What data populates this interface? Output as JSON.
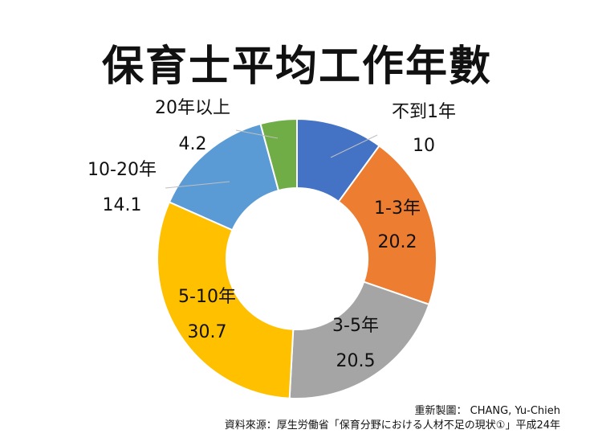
{
  "chart_data": {
    "type": "pie",
    "variant": "donut",
    "title": "保育士平均工作年數",
    "categories": [
      "不到1年",
      "1-3年",
      "3-5年",
      "5-10年",
      "10-20年",
      "20年以上"
    ],
    "values": [
      10,
      20.2,
      20.5,
      30.7,
      14.1,
      4.2
    ],
    "value_labels": [
      "10",
      "20.2",
      "20.5",
      "30.7",
      "14.1",
      "4.2"
    ],
    "colors": [
      "#4472C4",
      "#ED7D31",
      "#A5A5A5",
      "#FFC000",
      "#5B9BD5",
      "#70AD47"
    ],
    "legend": "none"
  },
  "credits": {
    "line1": "重新製圖： CHANG, Yu-Chieh",
    "line2": "資料來源：厚生労働省「保育分野における人材不足の現状①」平成24年"
  }
}
